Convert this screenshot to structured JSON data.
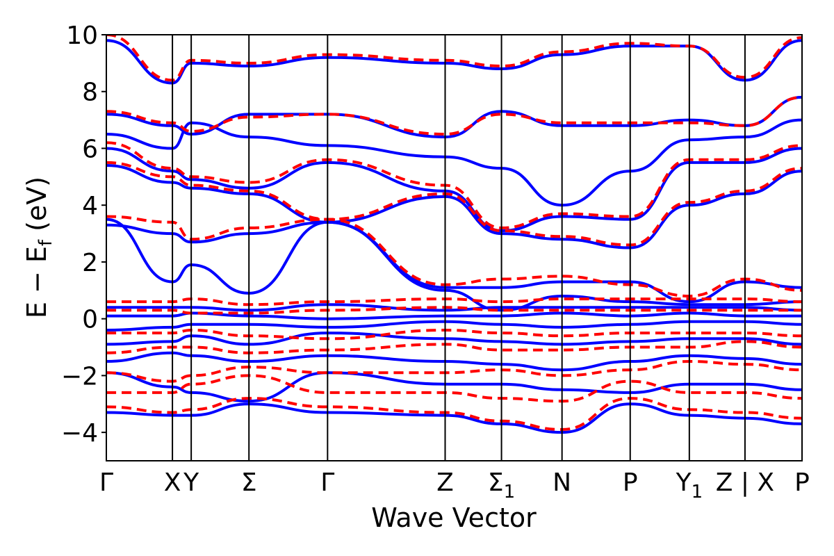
{
  "chart_data": {
    "type": "line",
    "title": "",
    "xlabel": "Wave Vector",
    "ylabel": "E − E",
    "ylabel_subscript": "f",
    "ylabel_units": " (eV)",
    "ylim": [
      -5,
      10
    ],
    "yticks": [
      -4,
      -2,
      0,
      2,
      4,
      6,
      8,
      10
    ],
    "ytick_labels": [
      "−4",
      "−2",
      "0",
      "2",
      "4",
      "6",
      "8",
      "10"
    ],
    "xlim": [
      0,
      1
    ],
    "kpoints": [
      {
        "label": "Γ",
        "sub": "",
        "x": 0.0,
        "line": false
      },
      {
        "label": "X",
        "sub": "",
        "x": 0.095,
        "line": true
      },
      {
        "label": "Y",
        "sub": "",
        "x": 0.122,
        "line": true
      },
      {
        "label": "Σ",
        "sub": "",
        "x": 0.205,
        "line": true
      },
      {
        "label": "Γ",
        "sub": "",
        "x": 0.318,
        "line": true
      },
      {
        "label": "Z",
        "sub": "",
        "x": 0.487,
        "line": true
      },
      {
        "label": "Σ",
        "sub": "1",
        "x": 0.568,
        "line": true
      },
      {
        "label": "N",
        "sub": "",
        "x": 0.655,
        "line": true
      },
      {
        "label": "P",
        "sub": "",
        "x": 0.753,
        "line": true
      },
      {
        "label": "Y",
        "sub": "1",
        "x": 0.838,
        "line": true
      },
      {
        "label": "Z | X",
        "sub": "",
        "x": 0.918,
        "line": true
      },
      {
        "label": "P",
        "sub": "",
        "x": 1.0,
        "line": false
      }
    ],
    "colors": {
      "solid": "#0000ff",
      "dashed": "#ff0000"
    },
    "series": [
      {
        "style": "solid",
        "x": [
          0,
          0.095,
          0.122,
          0.205,
          0.318,
          0.487,
          0.568,
          0.655,
          0.753,
          0.838,
          0.918,
          1.0
        ],
        "y": [
          -3.3,
          -3.4,
          -3.4,
          -3.0,
          -3.3,
          -3.4,
          -3.7,
          -4.0,
          -3.0,
          -3.4,
          -3.5,
          -3.7
        ]
      },
      {
        "style": "solid",
        "x": [
          0,
          0.095,
          0.122,
          0.205,
          0.318,
          0.487,
          0.568,
          0.655,
          0.753,
          0.838,
          0.918,
          1.0
        ],
        "y": [
          -1.9,
          -2.4,
          -2.6,
          -2.9,
          -1.9,
          -2.3,
          -2.3,
          -2.5,
          -2.6,
          -2.3,
          -2.3,
          -2.5
        ]
      },
      {
        "style": "solid",
        "x": [
          0,
          0.095,
          0.122,
          0.205,
          0.318,
          0.487,
          0.568,
          0.655,
          0.753,
          0.838,
          0.918,
          1.0
        ],
        "y": [
          -1.5,
          -1.2,
          -1.3,
          -1.5,
          -1.3,
          -1.5,
          -1.6,
          -1.8,
          -1.5,
          -1.3,
          -1.4,
          -1.6
        ]
      },
      {
        "style": "solid",
        "x": [
          0,
          0.095,
          0.122,
          0.205,
          0.318,
          0.487,
          0.568,
          0.655,
          0.753,
          0.838,
          0.918,
          1.0
        ],
        "y": [
          -0.9,
          -0.8,
          -0.6,
          -0.9,
          -0.5,
          -0.7,
          -0.8,
          -0.9,
          -0.8,
          -0.7,
          -0.7,
          -0.9
        ]
      },
      {
        "style": "solid",
        "x": [
          0,
          0.095,
          0.122,
          0.205,
          0.318,
          0.487,
          0.568,
          0.655,
          0.753,
          0.838,
          0.918,
          1.0
        ],
        "y": [
          -0.4,
          -0.3,
          -0.2,
          -0.2,
          -0.3,
          -0.1,
          -0.2,
          -0.3,
          -0.2,
          -0.1,
          -0.1,
          -0.2
        ]
      },
      {
        "style": "solid",
        "x": [
          0,
          0.095,
          0.122,
          0.205,
          0.318,
          0.487,
          0.568,
          0.655,
          0.753,
          0.838,
          0.918,
          1.0
        ],
        "y": [
          0.1,
          0.1,
          0.2,
          0.1,
          0.0,
          0.1,
          0.1,
          0.2,
          0.1,
          0.2,
          0.1,
          0.1
        ]
      },
      {
        "style": "solid",
        "x": [
          0,
          0.095,
          0.122,
          0.205,
          0.318,
          0.487,
          0.568,
          0.655,
          0.753,
          0.838,
          0.918,
          1.0
        ],
        "y": [
          0.4,
          0.4,
          0.4,
          0.3,
          0.5,
          0.3,
          0.4,
          0.4,
          0.4,
          0.4,
          0.4,
          0.3
        ]
      },
      {
        "style": "solid",
        "x": [
          0,
          0.095,
          0.122,
          0.205,
          0.318,
          0.487,
          0.568,
          0.655,
          0.753,
          0.838,
          0.918,
          1.0
        ],
        "y": [
          3.3,
          3.0,
          2.7,
          3.0,
          3.4,
          1.0,
          0.3,
          0.8,
          0.6,
          0.5,
          0.5,
          0.6
        ]
      },
      {
        "style": "solid",
        "x": [
          0,
          0.095,
          0.122,
          0.205,
          0.318,
          0.487,
          0.568,
          0.655,
          0.753,
          0.838,
          0.918,
          1.0
        ],
        "y": [
          3.5,
          1.3,
          1.9,
          0.9,
          3.4,
          1.1,
          1.1,
          1.3,
          1.3,
          0.6,
          1.3,
          1.1
        ]
      },
      {
        "style": "solid",
        "x": [
          0,
          0.095,
          0.122,
          0.205,
          0.318,
          0.487,
          0.568,
          0.655,
          0.753,
          0.838,
          0.918,
          1.0
        ],
        "y": [
          5.4,
          4.8,
          4.6,
          4.4,
          3.4,
          4.3,
          3.0,
          2.8,
          2.5,
          4.0,
          4.4,
          5.2
        ]
      },
      {
        "style": "solid",
        "x": [
          0,
          0.095,
          0.122,
          0.205,
          0.318,
          0.487,
          0.568,
          0.655,
          0.753,
          0.838,
          0.918,
          1.0
        ],
        "y": [
          6.0,
          5.2,
          4.9,
          4.6,
          5.5,
          4.5,
          3.1,
          3.6,
          3.5,
          5.5,
          5.5,
          6.0
        ]
      },
      {
        "style": "solid",
        "x": [
          0,
          0.095,
          0.122,
          0.205,
          0.318,
          0.487,
          0.568,
          0.655,
          0.753,
          0.838,
          0.918,
          1.0
        ],
        "y": [
          6.5,
          6.0,
          6.9,
          6.4,
          6.1,
          5.7,
          5.3,
          4.0,
          5.2,
          6.3,
          6.4,
          7.0
        ]
      },
      {
        "style": "solid",
        "x": [
          0,
          0.095,
          0.122,
          0.205,
          0.318,
          0.487,
          0.568,
          0.655,
          0.753,
          0.838,
          0.918,
          1.0
        ],
        "y": [
          7.2,
          6.8,
          6.5,
          7.2,
          7.2,
          6.4,
          7.3,
          6.8,
          6.8,
          7.0,
          6.8,
          7.8
        ]
      },
      {
        "style": "solid",
        "x": [
          0,
          0.095,
          0.122,
          0.205,
          0.318,
          0.487,
          0.568,
          0.655,
          0.753,
          0.838,
          0.918,
          1.0
        ],
        "y": [
          9.8,
          8.3,
          9.0,
          8.9,
          9.2,
          9.0,
          8.8,
          9.3,
          9.6,
          9.6,
          8.4,
          9.8
        ]
      },
      {
        "style": "dashed",
        "x": [
          0,
          0.095,
          0.122,
          0.205,
          0.318,
          0.487,
          0.568,
          0.655,
          0.753,
          0.838,
          0.918,
          1.0
        ],
        "y": [
          -3.1,
          -3.3,
          -3.2,
          -2.8,
          -3.1,
          -3.3,
          -3.6,
          -3.9,
          -2.8,
          -3.2,
          -3.3,
          -3.5
        ]
      },
      {
        "style": "dashed",
        "x": [
          0,
          0.095,
          0.122,
          0.205,
          0.318,
          0.487,
          0.568,
          0.655,
          0.753,
          0.838,
          0.918,
          1.0
        ],
        "y": [
          -2.6,
          -2.6,
          -2.3,
          -2.0,
          -2.6,
          -2.6,
          -2.8,
          -2.9,
          -2.2,
          -2.6,
          -2.6,
          -2.8
        ]
      },
      {
        "style": "dashed",
        "x": [
          0,
          0.095,
          0.122,
          0.205,
          0.318,
          0.487,
          0.568,
          0.655,
          0.753,
          0.838,
          0.918,
          1.0
        ],
        "y": [
          -1.9,
          -2.2,
          -2.0,
          -1.7,
          -1.9,
          -1.9,
          -1.8,
          -2.0,
          -1.8,
          -1.5,
          -1.6,
          -1.8
        ]
      },
      {
        "style": "dashed",
        "x": [
          0,
          0.095,
          0.122,
          0.205,
          0.318,
          0.487,
          0.568,
          0.655,
          0.753,
          0.838,
          0.918,
          1.0
        ],
        "y": [
          -1.2,
          -1.0,
          -1.0,
          -1.2,
          -1.1,
          -0.9,
          -1.1,
          -1.1,
          -1.0,
          -1.0,
          -0.8,
          -1.0
        ]
      },
      {
        "style": "dashed",
        "x": [
          0,
          0.095,
          0.122,
          0.205,
          0.318,
          0.487,
          0.568,
          0.655,
          0.753,
          0.838,
          0.918,
          1.0
        ],
        "y": [
          -0.5,
          -0.5,
          -0.4,
          -0.6,
          -0.7,
          -0.4,
          -0.5,
          -0.6,
          -0.5,
          -0.5,
          -0.5,
          -0.6
        ]
      },
      {
        "style": "dashed",
        "x": [
          0,
          0.095,
          0.122,
          0.205,
          0.318,
          0.487,
          0.568,
          0.655,
          0.753,
          0.838,
          0.918,
          1.0
        ],
        "y": [
          0.3,
          0.3,
          0.2,
          0.2,
          0.3,
          0.4,
          0.3,
          0.3,
          0.3,
          0.3,
          0.3,
          0.3
        ]
      },
      {
        "style": "dashed",
        "x": [
          0,
          0.095,
          0.122,
          0.205,
          0.318,
          0.487,
          0.568,
          0.655,
          0.753,
          0.838,
          0.918,
          1.0
        ],
        "y": [
          0.6,
          0.6,
          0.7,
          0.5,
          0.6,
          0.7,
          0.6,
          0.7,
          0.7,
          0.7,
          0.7,
          0.6
        ]
      },
      {
        "style": "dashed",
        "x": [
          0,
          0.095,
          0.122,
          0.205,
          0.318,
          0.487,
          0.568,
          0.655,
          0.753,
          0.838,
          0.918,
          1.0
        ],
        "y": [
          3.6,
          3.4,
          2.8,
          3.2,
          3.5,
          1.2,
          1.4,
          1.5,
          1.2,
          0.8,
          1.4,
          1.0
        ]
      },
      {
        "style": "dashed",
        "x": [
          0,
          0.095,
          0.122,
          0.205,
          0.318,
          0.487,
          0.568,
          0.655,
          0.753,
          0.838,
          0.918,
          1.0
        ],
        "y": [
          5.5,
          5.0,
          4.7,
          4.5,
          3.5,
          4.4,
          3.1,
          2.9,
          2.6,
          4.1,
          4.5,
          5.3
        ]
      },
      {
        "style": "dashed",
        "x": [
          0,
          0.095,
          0.122,
          0.205,
          0.318,
          0.487,
          0.568,
          0.655,
          0.753,
          0.838,
          0.918,
          1.0
        ],
        "y": [
          6.2,
          5.3,
          5.0,
          4.8,
          5.6,
          4.7,
          3.2,
          3.7,
          3.6,
          5.6,
          5.6,
          6.1
        ]
      },
      {
        "style": "dashed",
        "x": [
          0,
          0.095,
          0.122,
          0.205,
          0.318,
          0.487,
          0.568,
          0.655,
          0.753,
          0.838,
          0.918,
          1.0
        ],
        "y": [
          7.3,
          6.9,
          6.6,
          7.1,
          7.2,
          6.5,
          7.2,
          6.9,
          6.9,
          6.9,
          6.8,
          7.8
        ]
      },
      {
        "style": "dashed",
        "x": [
          0,
          0.095,
          0.122,
          0.205,
          0.318,
          0.487,
          0.568,
          0.655,
          0.753,
          0.838,
          0.918,
          1.0
        ],
        "y": [
          10.0,
          8.4,
          9.1,
          9.0,
          9.3,
          9.1,
          8.9,
          9.4,
          9.7,
          9.6,
          8.5,
          9.9
        ]
      }
    ]
  }
}
